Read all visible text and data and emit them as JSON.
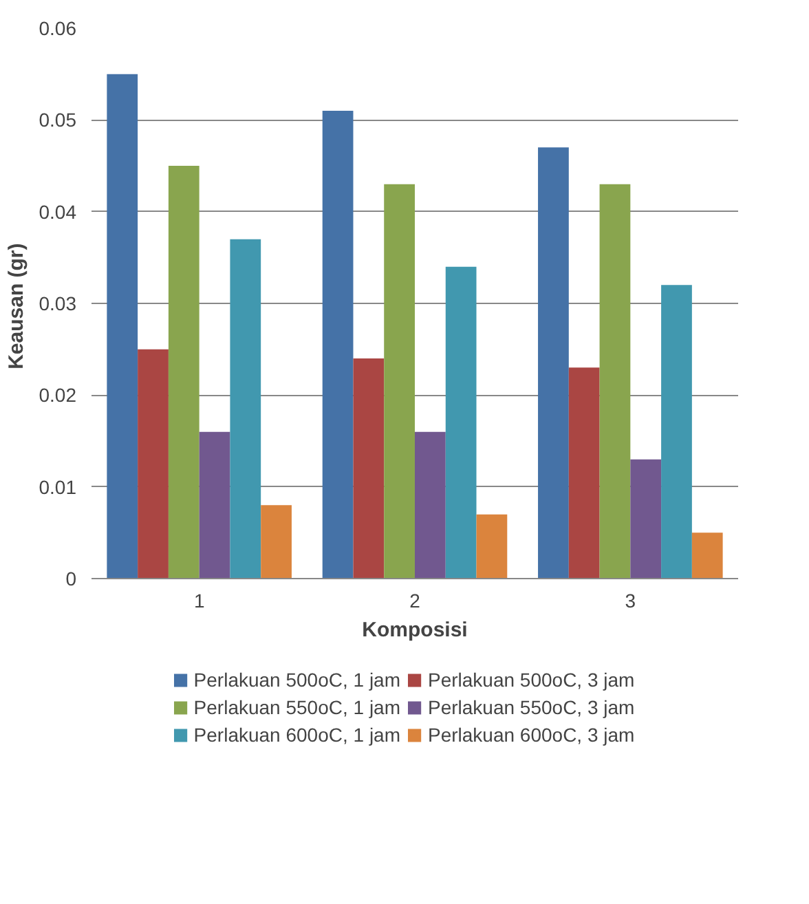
{
  "chart_data": {
    "type": "bar",
    "xlabel": "Komposisi",
    "ylabel": "Keausan  (gr)",
    "categories": [
      "1",
      "2",
      "3"
    ],
    "ylim": [
      0,
      0.06
    ],
    "yticks": [
      0,
      0.01,
      0.02,
      0.03,
      0.04,
      0.05,
      0.06
    ],
    "grid": "y",
    "legend": "bottom",
    "series": [
      {
        "name": "Perlakuan 500oC, 1 jam",
        "color": "#4572a7",
        "values": [
          0.055,
          0.051,
          0.047
        ]
      },
      {
        "name": "Perlakuan 500oC, 3 jam",
        "color": "#aa4643",
        "values": [
          0.025,
          0.024,
          0.023
        ]
      },
      {
        "name": "Perlakuan 550oC, 1 jam",
        "color": "#89a54e",
        "values": [
          0.045,
          0.043,
          0.043
        ]
      },
      {
        "name": "Perlakuan 550oC, 3 jam",
        "color": "#71588f",
        "values": [
          0.016,
          0.016,
          0.013
        ]
      },
      {
        "name": "Perlakuan 600oC, 1 jam",
        "color": "#4198af",
        "values": [
          0.037,
          0.034,
          0.032
        ]
      },
      {
        "name": "Perlakuan 600oC, 3 jam",
        "color": "#db843d",
        "values": [
          0.008,
          0.007,
          0.005
        ]
      }
    ]
  }
}
